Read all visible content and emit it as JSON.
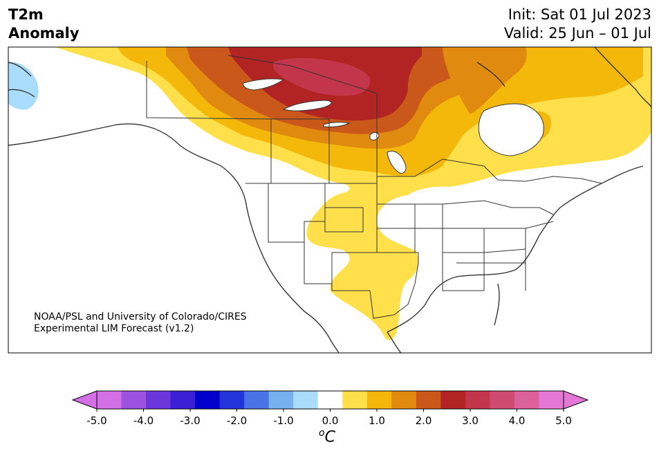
{
  "title": {
    "line1": "T2m",
    "line2": "Anomaly"
  },
  "dates": {
    "init": "Init: Sat 01 Jul 2023",
    "valid": "Valid: 25 Jun – 01 Jul"
  },
  "credit": {
    "line1": "NOAA/PSL and University of Colorado/CIRES",
    "line2": "Experimental LIM Forecast (v1.2)"
  },
  "colorbar": {
    "ticks": [
      "-5.0",
      "-4.0",
      "-3.0",
      "-2.0",
      "-1.0",
      "0.0",
      "1.0",
      "2.0",
      "3.0",
      "4.0",
      "5.0"
    ],
    "unit_sup": "o",
    "unit_main": "C",
    "levels": [
      -5.0,
      -4.5,
      -4.0,
      -3.5,
      -3.0,
      -2.5,
      -2.0,
      -1.5,
      -1.0,
      -0.5,
      0.5,
      1.0,
      1.5,
      2.0,
      2.5,
      3.0,
      3.5,
      4.0,
      4.5,
      5.0
    ],
    "colors": [
      "#d370e6",
      "#9d52e0",
      "#6b37dd",
      "#3a1fd4",
      "#0000cd",
      "#2235db",
      "#4a74e6",
      "#77b1f0",
      "#aadcfb",
      "#ffffff",
      "#ffe04a",
      "#f4b80b",
      "#e08a0f",
      "#c9581a",
      "#b22323",
      "#c2354b",
      "#cf4b70",
      "#db6199",
      "#e577d6"
    ],
    "extend_low": "#d370e6",
    "extend_high": "#e577d6"
  },
  "anomaly_colors": {
    "light_blue": "#aadcfb",
    "c05": "#ffe04a",
    "c10": "#f4b80b",
    "c15": "#e08a0f",
    "c20": "#c9581a",
    "c25": "#b22323",
    "c30": "#c2354b"
  }
}
